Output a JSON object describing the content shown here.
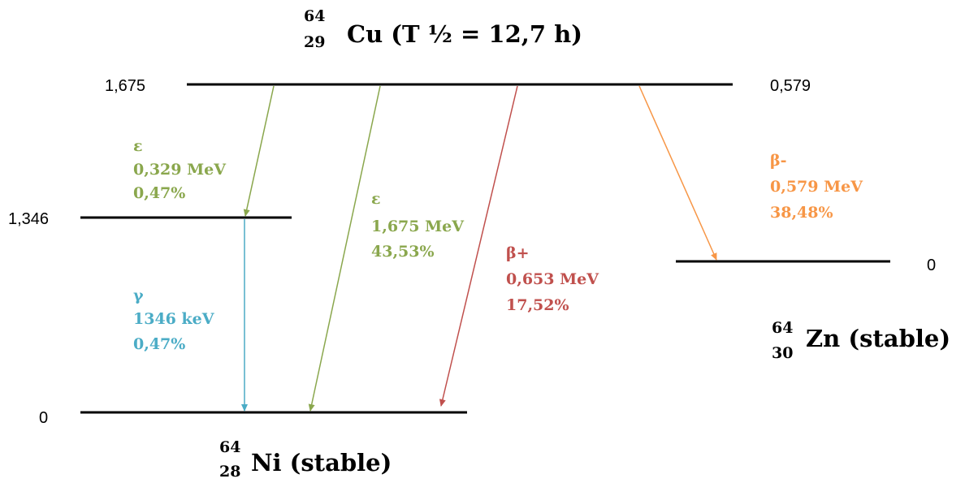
{
  "colors": {
    "ec": "#8aa74d",
    "beta_plus": "#c0504d",
    "beta_minus": "#f79646",
    "gamma": "#4bacc6",
    "level": "#000000"
  },
  "parent": {
    "mass": "64",
    "z": "29",
    "name": "Cu (T ½ = 12,7 h)"
  },
  "nickel": {
    "mass": "64",
    "z": "28",
    "name": "Ni (stable)"
  },
  "zinc": {
    "mass": "64",
    "z": "30",
    "name": "Zn (stable)"
  },
  "levels": {
    "cu_left": "1,675",
    "cu_right": "0,579",
    "ni_excited": "1,346",
    "ni_ground": "0",
    "zn_ground": "0"
  },
  "transitions": {
    "ec1": {
      "mode": "ε",
      "energy": "0,329 MeV",
      "intensity": "0,47%"
    },
    "ec2": {
      "mode": "ε",
      "energy": "1,675 MeV",
      "intensity": "43,53%"
    },
    "beta_plus": {
      "mode": "β+",
      "energy": "0,653 MeV",
      "intensity": "17,52%"
    },
    "beta_minus": {
      "mode": "β-",
      "energy": "0,579 MeV",
      "intensity": "38,48%"
    },
    "gamma": {
      "mode": "γ",
      "energy": "1346 keV",
      "intensity": "0,47%"
    }
  }
}
